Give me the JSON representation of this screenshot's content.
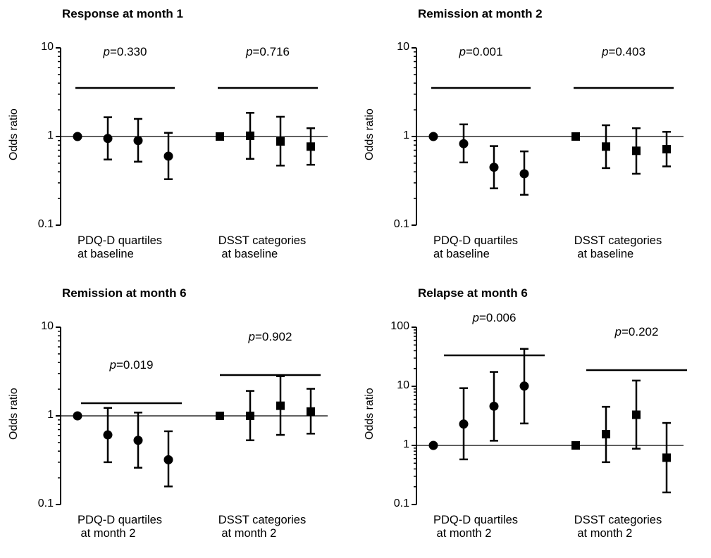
{
  "y_axis_label": "Odds ratio",
  "chart_data": [
    {
      "type": "scatter",
      "title": "Response at month 1",
      "ylabel": "Odds ratio",
      "yscale": "log",
      "ylim": [
        0.1,
        10
      ],
      "yticks": [
        "0.1",
        "1",
        "10"
      ],
      "reference_line": 1,
      "groups": [
        {
          "label": "PDQ-D quartiles\nat baseline",
          "marker": "circle",
          "p_prefix": "p",
          "p_value": "=0.330",
          "points": [
            {
              "or": 1.0
            },
            {
              "or": 0.95,
              "lo": 0.55,
              "hi": 1.65
            },
            {
              "or": 0.9,
              "lo": 0.52,
              "hi": 1.58
            },
            {
              "or": 0.6,
              "lo": 0.33,
              "hi": 1.1
            }
          ]
        },
        {
          "label": "DSST categories\n at baseline",
          "marker": "square",
          "p_prefix": "p",
          "p_value": "=0.716",
          "points": [
            {
              "or": 1.0
            },
            {
              "or": 1.02,
              "lo": 0.56,
              "hi": 1.85
            },
            {
              "or": 0.88,
              "lo": 0.47,
              "hi": 1.67
            },
            {
              "or": 0.77,
              "lo": 0.48,
              "hi": 1.24
            }
          ]
        }
      ]
    },
    {
      "type": "scatter",
      "title": "Remission at month 2",
      "ylabel": "Odds ratio",
      "yscale": "log",
      "ylim": [
        0.1,
        10
      ],
      "yticks": [
        "0.1",
        "1",
        "10"
      ],
      "reference_line": 1,
      "groups": [
        {
          "label": "PDQ-D quartiles\nat baseline",
          "marker": "circle",
          "p_prefix": "p",
          "p_value": "=0.001",
          "points": [
            {
              "or": 1.0
            },
            {
              "or": 0.83,
              "lo": 0.51,
              "hi": 1.37
            },
            {
              "or": 0.45,
              "lo": 0.26,
              "hi": 0.78
            },
            {
              "or": 0.38,
              "lo": 0.22,
              "hi": 0.68
            }
          ]
        },
        {
          "label": "DSST categories\n at baseline",
          "marker": "square",
          "p_prefix": "p",
          "p_value": "=0.403",
          "points": [
            {
              "or": 1.0
            },
            {
              "or": 0.77,
              "lo": 0.44,
              "hi": 1.34
            },
            {
              "or": 0.69,
              "lo": 0.38,
              "hi": 1.24
            },
            {
              "or": 0.72,
              "lo": 0.46,
              "hi": 1.13
            }
          ]
        }
      ]
    },
    {
      "type": "scatter",
      "title": "Remission at month 6",
      "ylabel": "Odds ratio",
      "yscale": "log",
      "ylim": [
        0.1,
        10
      ],
      "yticks": [
        "0.1",
        "1",
        "10"
      ],
      "reference_line": 1,
      "groups": [
        {
          "label": "PDQ-D quartiles\n at month 2",
          "marker": "circle",
          "p_prefix": "p",
          "p_value": "=0.019",
          "points": [
            {
              "or": 1.0
            },
            {
              "or": 0.61,
              "lo": 0.3,
              "hi": 1.23
            },
            {
              "or": 0.53,
              "lo": 0.26,
              "hi": 1.09
            },
            {
              "or": 0.32,
              "lo": 0.16,
              "hi": 0.67
            }
          ]
        },
        {
          "label": "DSST categories\n at month 2",
          "marker": "square",
          "p_prefix": "p",
          "p_value": "=0.902",
          "points": [
            {
              "or": 1.0
            },
            {
              "or": 1.0,
              "lo": 0.53,
              "hi": 1.91
            },
            {
              "or": 1.3,
              "lo": 0.61,
              "hi": 2.8
            },
            {
              "or": 1.12,
              "lo": 0.63,
              "hi": 2.02
            }
          ]
        }
      ]
    },
    {
      "type": "scatter",
      "title": "Relapse at month 6",
      "ylabel": "Odds ratio",
      "yscale": "log",
      "ylim": [
        0.1,
        100
      ],
      "yticks": [
        "0.1",
        "1",
        "10",
        "100"
      ],
      "reference_line": 1,
      "groups": [
        {
          "label": "PDQ-D quartiles\n at month 2",
          "marker": "circle",
          "p_prefix": "p",
          "p_value": "=0.006",
          "points": [
            {
              "or": 1.0
            },
            {
              "or": 2.3,
              "lo": 0.58,
              "hi": 9.3
            },
            {
              "or": 4.6,
              "lo": 1.2,
              "hi": 17.5
            },
            {
              "or": 10.1,
              "lo": 2.35,
              "hi": 43
            }
          ]
        },
        {
          "label": "DSST categories\n at month 2",
          "marker": "square",
          "p_prefix": "p",
          "p_value": "=0.202",
          "points": [
            {
              "or": 1.0
            },
            {
              "or": 1.55,
              "lo": 0.52,
              "hi": 4.5
            },
            {
              "or": 3.3,
              "lo": 0.88,
              "hi": 12.5
            },
            {
              "or": 0.62,
              "lo": 0.16,
              "hi": 2.4
            }
          ]
        }
      ]
    }
  ]
}
